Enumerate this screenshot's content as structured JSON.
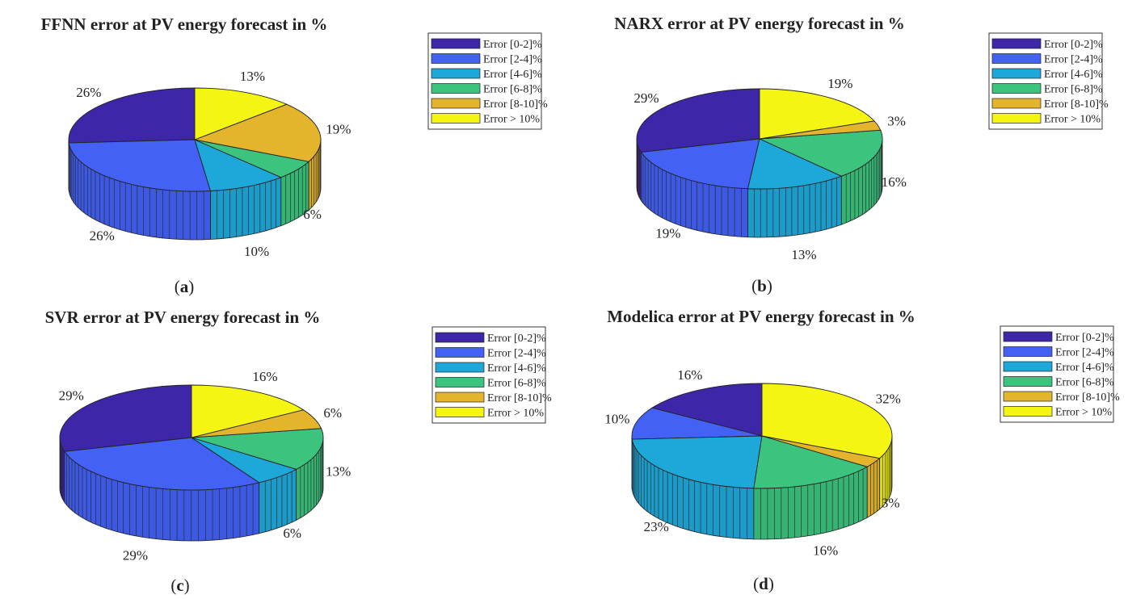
{
  "figure": {
    "legend_labels": [
      "Error [0-2]%",
      "Error [2-4]%",
      "Error [4-6]%",
      "Error [6-8]%",
      "Error [8-10]%",
      "Error > 10%"
    ],
    "colors": [
      "#3e26a8",
      "#4361f5",
      "#1ea8d9",
      "#3cc47e",
      "#e4b42c",
      "#f5f514"
    ]
  },
  "chart_data": [
    {
      "type": "pie",
      "title": "FFNN error at PV energy forecast in %",
      "panel_label": "a",
      "categories": [
        "Error [0-2]%",
        "Error [2-4]%",
        "Error [4-6]%",
        "Error [6-8]%",
        "Error [8-10]%",
        "Error > 10%"
      ],
      "values": [
        26,
        26,
        10,
        6,
        19,
        13
      ],
      "value_labels": [
        "26%",
        "26%",
        "10%",
        "6%",
        "19%",
        "13%"
      ],
      "style": "3d",
      "legend_position": "top-right"
    },
    {
      "type": "pie",
      "title": "NARX error at PV energy forecast in %",
      "panel_label": "b",
      "categories": [
        "Error [0-2]%",
        "Error [2-4]%",
        "Error [4-6]%",
        "Error [6-8]%",
        "Error [8-10]%",
        "Error > 10%"
      ],
      "values": [
        29,
        19,
        13,
        16,
        3,
        19
      ],
      "value_labels": [
        "29%",
        "19%",
        "13%",
        "16%",
        "3%",
        "19%"
      ],
      "style": "3d",
      "legend_position": "top-right"
    },
    {
      "type": "pie",
      "title": "SVR error at PV energy forecast in %",
      "panel_label": "c",
      "categories": [
        "Error [0-2]%",
        "Error [2-4]%",
        "Error [4-6]%",
        "Error [6-8]%",
        "Error [8-10]%",
        "Error > 10%"
      ],
      "values": [
        29,
        29,
        6,
        13,
        6,
        16
      ],
      "value_labels": [
        "29%",
        "29%",
        "6%",
        "13%",
        "6%",
        "16%"
      ],
      "style": "3d",
      "legend_position": "top-right"
    },
    {
      "type": "pie",
      "title": "Modelica error at PV energy forecast in %",
      "panel_label": "d",
      "categories": [
        "Error [0-2]%",
        "Error [2-4]%",
        "Error [4-6]%",
        "Error [6-8]%",
        "Error [8-10]%",
        "Error > 10%"
      ],
      "values": [
        16,
        10,
        23,
        16,
        3,
        32
      ],
      "value_labels": [
        "16%",
        "10%",
        "23%",
        "16%",
        "3%",
        "32%"
      ],
      "style": "3d",
      "legend_position": "top-right"
    }
  ]
}
